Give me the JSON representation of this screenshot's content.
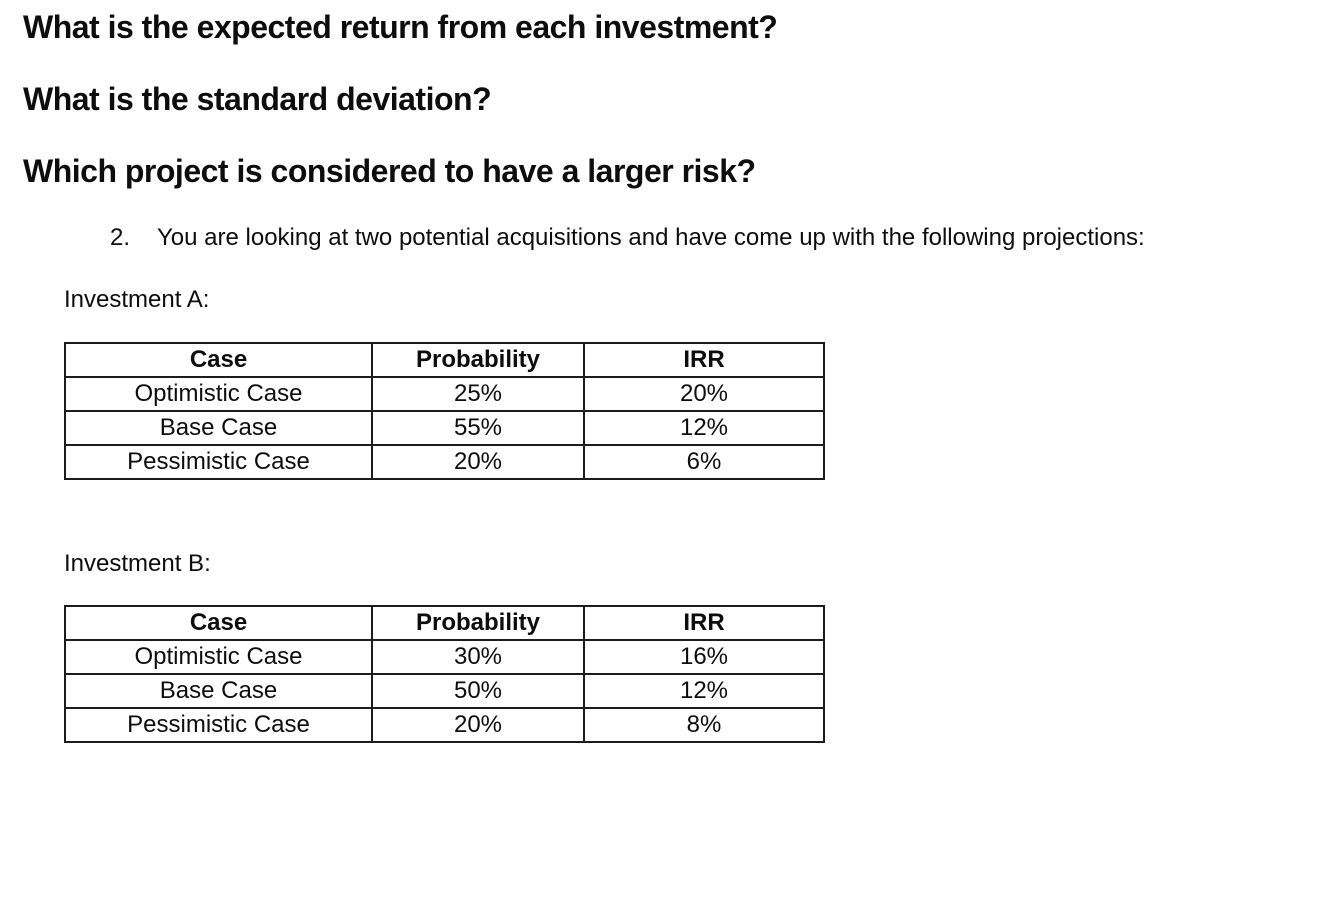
{
  "questions": [
    "What is the expected return from each investment?",
    "What is the standard deviation?",
    "Which project is considered to have a larger risk?"
  ],
  "item": {
    "number": "2.",
    "text": "You are looking at two potential acquisitions and have come up with the following projections:"
  },
  "investments": [
    {
      "label": "Investment A:",
      "table": {
        "headers": [
          "Case",
          "Probability",
          "IRR"
        ],
        "rows": [
          [
            "Optimistic Case",
            "25%",
            "20%"
          ],
          [
            "Base Case",
            "55%",
            "12%"
          ],
          [
            "Pessimistic Case",
            "20%",
            "6%"
          ]
        ]
      }
    },
    {
      "label": "Investment B:",
      "table": {
        "headers": [
          "Case",
          "Probability",
          "IRR"
        ],
        "rows": [
          [
            "Optimistic Case",
            "30%",
            "16%"
          ],
          [
            "Base Case",
            "50%",
            "12%"
          ],
          [
            "Pessimistic Case",
            "20%",
            "8%"
          ]
        ]
      }
    }
  ],
  "colors": {
    "text": "#0d0d0d",
    "table_border": "#1c1c1c",
    "background": "#ffffff"
  }
}
